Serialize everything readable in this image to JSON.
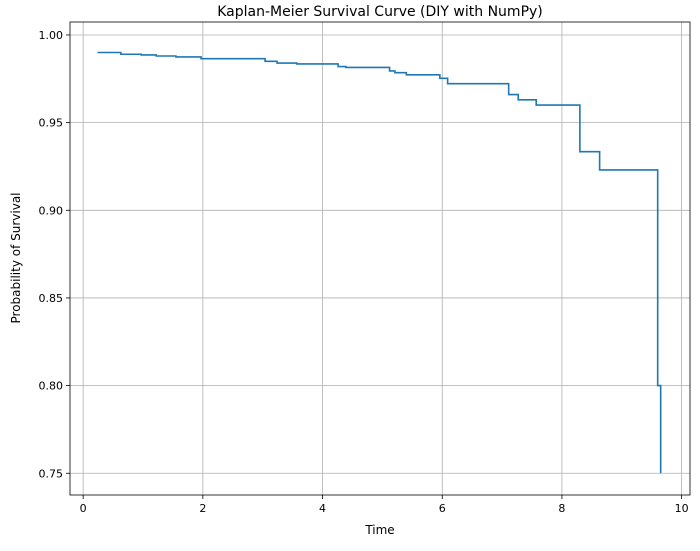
{
  "chart_data": {
    "type": "line",
    "title": "Kaplan-Meier Survival Curve (DIY with NumPy)",
    "xlabel": "Time",
    "ylabel": "Probability of Survival",
    "xlim": [
      -0.22,
      10.14
    ],
    "ylim": [
      0.7376,
      1.0074
    ],
    "xticks": [
      0,
      2,
      4,
      6,
      8,
      10
    ],
    "xtick_labels": [
      "0",
      "2",
      "4",
      "6",
      "8",
      "10"
    ],
    "yticks": [
      0.75,
      0.8,
      0.85,
      0.9,
      0.95,
      1.0
    ],
    "ytick_labels": [
      "0.75",
      "0.80",
      "0.85",
      "0.90",
      "0.95",
      "1.00"
    ],
    "grid": true,
    "drawstyle": "steps-post",
    "color": "#1f77b4",
    "series": [
      {
        "x": [
          0.24,
          0.63,
          0.97,
          1.22,
          1.55,
          1.97,
          3.04,
          3.24,
          3.57,
          4.26,
          4.39,
          5.12,
          5.21,
          5.4,
          5.96,
          6.09,
          7.11,
          7.27,
          7.57,
          8.3,
          8.63,
          9.6,
          9.65
        ],
        "y": [
          0.99,
          0.989,
          0.9886,
          0.988,
          0.9875,
          0.9865,
          0.985,
          0.984,
          0.9835,
          0.982,
          0.9815,
          0.9795,
          0.9785,
          0.9773,
          0.9753,
          0.9722,
          0.966,
          0.963,
          0.96,
          0.9334,
          0.923,
          0.8,
          0.75
        ]
      }
    ]
  }
}
